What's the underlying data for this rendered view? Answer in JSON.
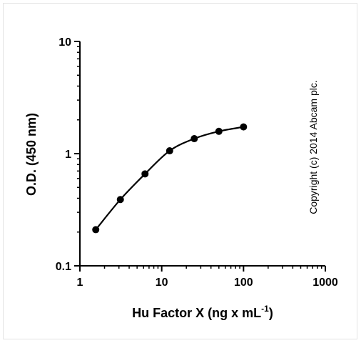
{
  "chart_data": {
    "type": "line",
    "title": "",
    "xlabel": "Hu Factor X (ng x mL",
    "xlabel_sup": "-1",
    "xlabel_end": ")",
    "ylabel": "O.D. (450 nm)",
    "xscale": "log",
    "yscale": "log",
    "xlim": [
      1,
      1000
    ],
    "ylim": [
      0.1,
      10
    ],
    "x_ticks": [
      "1",
      "10",
      "100",
      "1000"
    ],
    "y_ticks": [
      "0.1",
      "1",
      "10"
    ],
    "grid": false,
    "legend": "none",
    "series": [
      {
        "x": [
          1.5625,
          3.125,
          6.25,
          12.5,
          25,
          50,
          100
        ],
        "y": [
          0.21,
          0.39,
          0.66,
          1.06,
          1.36,
          1.58,
          1.73
        ]
      }
    ],
    "annotation": "Copyright (c) 2014 Abcam plc.",
    "colors": {
      "line": "#000000",
      "marker": "#000000"
    }
  }
}
